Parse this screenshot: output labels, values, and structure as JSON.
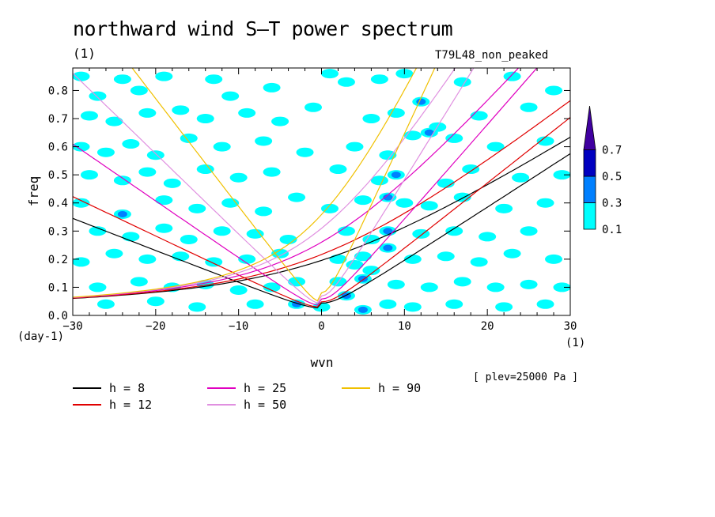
{
  "title": "northward wind S–T power spectrum",
  "subtitle": "(1)",
  "run_label": "T79L48_non_peaked",
  "level_note": "[ plev=25000 Pa ]",
  "chart_data": {
    "type": "heatmap",
    "xlabel": "wvn",
    "ylabel": "freq",
    "x_unit": "(1)",
    "y_unit": "(day-1)",
    "xlim": [
      -30,
      30
    ],
    "ylim": [
      0,
      0.88
    ],
    "x_ticks": [
      "−30",
      "−20",
      "−10",
      "0",
      "10",
      "20",
      "30"
    ],
    "x_tick_values": [
      -30,
      -20,
      -10,
      0,
      10,
      20,
      30
    ],
    "y_ticks": [
      "0.0",
      "0.1",
      "0.2",
      "0.3",
      "0.4",
      "0.5",
      "0.6",
      "0.7",
      "0.8"
    ],
    "y_tick_values": [
      0,
      0.1,
      0.2,
      0.3,
      0.4,
      0.5,
      0.6,
      0.7,
      0.8
    ],
    "colorbar": {
      "levels": [
        "0.1",
        "0.3",
        "0.5",
        "0.7"
      ],
      "level_values": [
        0.1,
        0.3,
        0.5,
        0.7
      ],
      "colors": [
        "#00ffff",
        "#0080ff",
        "#0000c0",
        "#4000a0"
      ]
    },
    "dispersion_curves": [
      {
        "name": "h =  8",
        "h": 8,
        "color": "#000000"
      },
      {
        "name": "h = 12",
        "h": 12,
        "color": "#e00000"
      },
      {
        "name": "h = 25",
        "h": 25,
        "color": "#e000c0"
      },
      {
        "name": "h = 50",
        "h": 50,
        "color": "#e090e0"
      },
      {
        "name": "h = 90",
        "h": 90,
        "color": "#f0c000"
      }
    ],
    "contour_cells": [
      {
        "k": -29,
        "f": 0.85,
        "v": 0.15
      },
      {
        "k": -27,
        "f": 0.78,
        "v": 0.15
      },
      {
        "k": -24,
        "f": 0.84,
        "v": 0.15
      },
      {
        "k": -22,
        "f": 0.8,
        "v": 0.15
      },
      {
        "k": -19,
        "f": 0.85,
        "v": 0.15
      },
      {
        "k": -13,
        "f": 0.84,
        "v": 0.15
      },
      {
        "k": -11,
        "f": 0.78,
        "v": 0.15
      },
      {
        "k": -6,
        "f": 0.81,
        "v": 0.15
      },
      {
        "k": 1,
        "f": 0.86,
        "v": 0.15
      },
      {
        "k": 3,
        "f": 0.83,
        "v": 0.15
      },
      {
        "k": 7,
        "f": 0.84,
        "v": 0.15
      },
      {
        "k": 10,
        "f": 0.86,
        "v": 0.15
      },
      {
        "k": 12,
        "f": 0.76,
        "v": 0.4
      },
      {
        "k": 17,
        "f": 0.83,
        "v": 0.15
      },
      {
        "k": 23,
        "f": 0.85,
        "v": 0.15
      },
      {
        "k": 28,
        "f": 0.8,
        "v": 0.15
      },
      {
        "k": -28,
        "f": 0.71,
        "v": 0.15
      },
      {
        "k": -25,
        "f": 0.69,
        "v": 0.15
      },
      {
        "k": -21,
        "f": 0.72,
        "v": 0.15
      },
      {
        "k": -17,
        "f": 0.73,
        "v": 0.15
      },
      {
        "k": -14,
        "f": 0.7,
        "v": 0.15
      },
      {
        "k": -9,
        "f": 0.72,
        "v": 0.15
      },
      {
        "k": -5,
        "f": 0.69,
        "v": 0.15
      },
      {
        "k": -1,
        "f": 0.74,
        "v": 0.15
      },
      {
        "k": 6,
        "f": 0.7,
        "v": 0.15
      },
      {
        "k": 9,
        "f": 0.72,
        "v": 0.15
      },
      {
        "k": 14,
        "f": 0.67,
        "v": 0.15
      },
      {
        "k": 19,
        "f": 0.71,
        "v": 0.15
      },
      {
        "k": 25,
        "f": 0.74,
        "v": 0.15
      },
      {
        "k": -29,
        "f": 0.6,
        "v": 0.15
      },
      {
        "k": -26,
        "f": 0.58,
        "v": 0.15
      },
      {
        "k": -23,
        "f": 0.61,
        "v": 0.15
      },
      {
        "k": -20,
        "f": 0.57,
        "v": 0.15
      },
      {
        "k": -16,
        "f": 0.63,
        "v": 0.15
      },
      {
        "k": -12,
        "f": 0.6,
        "v": 0.15
      },
      {
        "k": -7,
        "f": 0.62,
        "v": 0.15
      },
      {
        "k": -2,
        "f": 0.58,
        "v": 0.15
      },
      {
        "k": 4,
        "f": 0.6,
        "v": 0.15
      },
      {
        "k": 8,
        "f": 0.57,
        "v": 0.15
      },
      {
        "k": 11,
        "f": 0.64,
        "v": 0.15
      },
      {
        "k": 13,
        "f": 0.65,
        "v": 0.4
      },
      {
        "k": 16,
        "f": 0.63,
        "v": 0.15
      },
      {
        "k": 21,
        "f": 0.6,
        "v": 0.15
      },
      {
        "k": 27,
        "f": 0.62,
        "v": 0.15
      },
      {
        "k": -28,
        "f": 0.5,
        "v": 0.15
      },
      {
        "k": -24,
        "f": 0.48,
        "v": 0.15
      },
      {
        "k": -21,
        "f": 0.51,
        "v": 0.15
      },
      {
        "k": -18,
        "f": 0.47,
        "v": 0.15
      },
      {
        "k": -14,
        "f": 0.52,
        "v": 0.15
      },
      {
        "k": -10,
        "f": 0.49,
        "v": 0.15
      },
      {
        "k": -6,
        "f": 0.51,
        "v": 0.15
      },
      {
        "k": 2,
        "f": 0.52,
        "v": 0.15
      },
      {
        "k": 7,
        "f": 0.48,
        "v": 0.15
      },
      {
        "k": 9,
        "f": 0.5,
        "v": 0.4
      },
      {
        "k": 15,
        "f": 0.47,
        "v": 0.15
      },
      {
        "k": 18,
        "f": 0.52,
        "v": 0.15
      },
      {
        "k": 24,
        "f": 0.49,
        "v": 0.15
      },
      {
        "k": 29,
        "f": 0.5,
        "v": 0.15
      },
      {
        "k": -29,
        "f": 0.4,
        "v": 0.15
      },
      {
        "k": -24,
        "f": 0.36,
        "v": 0.3
      },
      {
        "k": -19,
        "f": 0.41,
        "v": 0.15
      },
      {
        "k": -15,
        "f": 0.38,
        "v": 0.15
      },
      {
        "k": -11,
        "f": 0.4,
        "v": 0.15
      },
      {
        "k": -7,
        "f": 0.37,
        "v": 0.15
      },
      {
        "k": -3,
        "f": 0.42,
        "v": 0.15
      },
      {
        "k": 1,
        "f": 0.38,
        "v": 0.15
      },
      {
        "k": 5,
        "f": 0.41,
        "v": 0.15
      },
      {
        "k": 8,
        "f": 0.42,
        "v": 0.4
      },
      {
        "k": 10,
        "f": 0.4,
        "v": 0.15
      },
      {
        "k": 13,
        "f": 0.39,
        "v": 0.15
      },
      {
        "k": 17,
        "f": 0.42,
        "v": 0.15
      },
      {
        "k": 22,
        "f": 0.38,
        "v": 0.15
      },
      {
        "k": 27,
        "f": 0.4,
        "v": 0.15
      },
      {
        "k": -27,
        "f": 0.3,
        "v": 0.15
      },
      {
        "k": -23,
        "f": 0.28,
        "v": 0.15
      },
      {
        "k": -19,
        "f": 0.31,
        "v": 0.15
      },
      {
        "k": -16,
        "f": 0.27,
        "v": 0.15
      },
      {
        "k": -12,
        "f": 0.3,
        "v": 0.15
      },
      {
        "k": -8,
        "f": 0.29,
        "v": 0.15
      },
      {
        "k": -4,
        "f": 0.27,
        "v": 0.15
      },
      {
        "k": 3,
        "f": 0.3,
        "v": 0.15
      },
      {
        "k": 6,
        "f": 0.27,
        "v": 0.15
      },
      {
        "k": 8,
        "f": 0.3,
        "v": 0.4
      },
      {
        "k": 12,
        "f": 0.29,
        "v": 0.15
      },
      {
        "k": 16,
        "f": 0.3,
        "v": 0.15
      },
      {
        "k": 20,
        "f": 0.28,
        "v": 0.15
      },
      {
        "k": 25,
        "f": 0.3,
        "v": 0.15
      },
      {
        "k": -29,
        "f": 0.19,
        "v": 0.15
      },
      {
        "k": -25,
        "f": 0.22,
        "v": 0.15
      },
      {
        "k": -21,
        "f": 0.2,
        "v": 0.15
      },
      {
        "k": -17,
        "f": 0.21,
        "v": 0.15
      },
      {
        "k": -13,
        "f": 0.19,
        "v": 0.15
      },
      {
        "k": -9,
        "f": 0.2,
        "v": 0.15
      },
      {
        "k": -5,
        "f": 0.22,
        "v": 0.15
      },
      {
        "k": 2,
        "f": 0.2,
        "v": 0.15
      },
      {
        "k": 5,
        "f": 0.21,
        "v": 0.15
      },
      {
        "k": 8,
        "f": 0.24,
        "v": 0.4
      },
      {
        "k": 11,
        "f": 0.2,
        "v": 0.15
      },
      {
        "k": 15,
        "f": 0.21,
        "v": 0.15
      },
      {
        "k": 19,
        "f": 0.19,
        "v": 0.15
      },
      {
        "k": 23,
        "f": 0.22,
        "v": 0.15
      },
      {
        "k": 28,
        "f": 0.2,
        "v": 0.15
      },
      {
        "k": -27,
        "f": 0.1,
        "v": 0.15
      },
      {
        "k": -22,
        "f": 0.12,
        "v": 0.15
      },
      {
        "k": -18,
        "f": 0.1,
        "v": 0.15
      },
      {
        "k": -14,
        "f": 0.11,
        "v": 0.15
      },
      {
        "k": -10,
        "f": 0.09,
        "v": 0.15
      },
      {
        "k": -6,
        "f": 0.1,
        "v": 0.15
      },
      {
        "k": -3,
        "f": 0.12,
        "v": 0.15
      },
      {
        "k": 2,
        "f": 0.12,
        "v": 0.15
      },
      {
        "k": 3,
        "f": 0.07,
        "v": 0.4
      },
      {
        "k": 5,
        "f": 0.13,
        "v": 0.4
      },
      {
        "k": 9,
        "f": 0.11,
        "v": 0.15
      },
      {
        "k": 13,
        "f": 0.1,
        "v": 0.15
      },
      {
        "k": 17,
        "f": 0.12,
        "v": 0.15
      },
      {
        "k": 21,
        "f": 0.1,
        "v": 0.15
      },
      {
        "k": 25,
        "f": 0.11,
        "v": 0.15
      },
      {
        "k": 29,
        "f": 0.1,
        "v": 0.15
      },
      {
        "k": -26,
        "f": 0.04,
        "v": 0.15
      },
      {
        "k": -20,
        "f": 0.05,
        "v": 0.15
      },
      {
        "k": -15,
        "f": 0.03,
        "v": 0.15
      },
      {
        "k": -8,
        "f": 0.04,
        "v": 0.15
      },
      {
        "k": -3,
        "f": 0.04,
        "v": 0.4
      },
      {
        "k": 0,
        "f": 0.03,
        "v": 0.15
      },
      {
        "k": 5,
        "f": 0.02,
        "v": 0.4
      },
      {
        "k": 8,
        "f": 0.04,
        "v": 0.15
      },
      {
        "k": 11,
        "f": 0.03,
        "v": 0.15
      },
      {
        "k": 16,
        "f": 0.04,
        "v": 0.15
      },
      {
        "k": 22,
        "f": 0.03,
        "v": 0.15
      },
      {
        "k": 27,
        "f": 0.04,
        "v": 0.15
      },
      {
        "k": 4,
        "f": 0.18,
        "v": 0.15
      },
      {
        "k": 6,
        "f": 0.16,
        "v": 0.15
      }
    ]
  }
}
